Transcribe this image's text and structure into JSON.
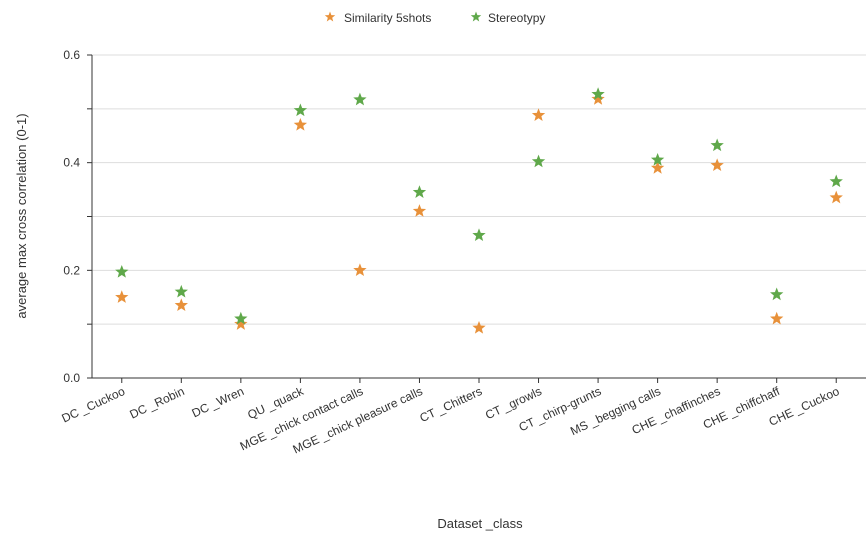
{
  "chart_data": {
    "type": "scatter",
    "title": "",
    "xlabel": "Dataset _class",
    "ylabel": "average max cross correlation (0-1)",
    "categories": [
      "DC _Cuckoo",
      "DC _Robin",
      "DC _Wren",
      "QU _quack",
      "MGE _chick contact calls",
      "MGE _chick pleasure calls",
      "CT _Chitters",
      "CT _growls",
      "CT _chirp-grunts",
      "MS _begging calls",
      "CHE _chaffinches",
      "CHE _chiffchaff",
      "CHE _Cuckoo"
    ],
    "ylim": [
      0,
      0.6
    ],
    "yticks": [
      0.0,
      0.2,
      0.4,
      0.6
    ],
    "ytick_labels": [
      "0.0",
      "0.2",
      "0.4",
      "0.6"
    ],
    "grid": true,
    "legend_position": "top-center",
    "marker": "star",
    "series": [
      {
        "name": "Similarity 5shots",
        "color": "#e8913a",
        "values": [
          0.15,
          0.135,
          0.1,
          0.47,
          0.2,
          0.31,
          0.093,
          0.488,
          0.518,
          0.39,
          0.395,
          0.11,
          0.335
        ]
      },
      {
        "name": "Stereotypy",
        "color": "#5fa84a",
        "values": [
          0.197,
          0.16,
          0.11,
          0.497,
          0.517,
          0.345,
          0.265,
          0.402,
          0.527,
          0.405,
          0.432,
          0.155,
          0.365
        ]
      }
    ]
  }
}
